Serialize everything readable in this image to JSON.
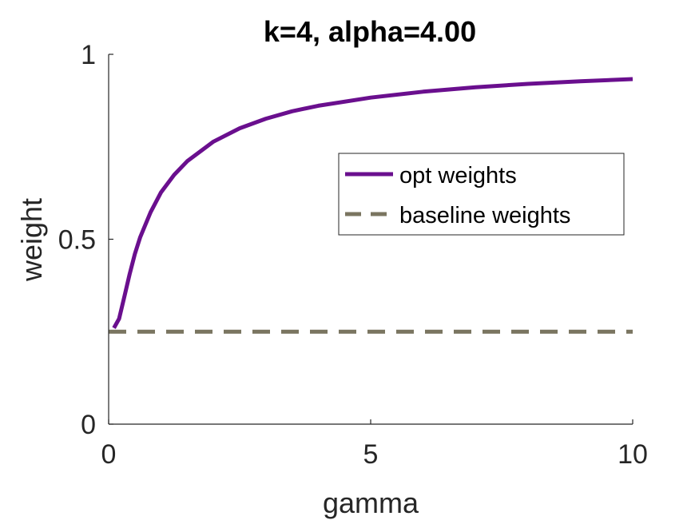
{
  "chart_data": {
    "type": "line",
    "title": "k=4, alpha=4.00",
    "xlabel": "gamma",
    "ylabel": "weight",
    "xlim": [
      0,
      10
    ],
    "ylim": [
      0,
      1
    ],
    "xticks": [
      "0",
      "5",
      "10"
    ],
    "yticks": [
      "0",
      "0.5",
      "1"
    ],
    "grid": false,
    "legend_position": "center-right",
    "series": [
      {
        "name": "opt weights",
        "style": "solid",
        "color": "#6a0f8e",
        "x": [
          0.1,
          0.2,
          0.3,
          0.4,
          0.5,
          0.6,
          0.8,
          1.0,
          1.25,
          1.5,
          2.0,
          2.5,
          3.0,
          3.5,
          4.0,
          5.0,
          6.0,
          7.0,
          8.0,
          9.0,
          10.0
        ],
        "y": [
          0.26,
          0.285,
          0.345,
          0.405,
          0.46,
          0.505,
          0.573,
          0.627,
          0.674,
          0.711,
          0.764,
          0.8,
          0.826,
          0.846,
          0.861,
          0.883,
          0.899,
          0.911,
          0.92,
          0.927,
          0.933
        ]
      },
      {
        "name": "baseline weights",
        "style": "dashed",
        "color": "#7a7560",
        "x": [
          0.0,
          10.0
        ],
        "y": [
          0.25,
          0.25
        ]
      }
    ]
  }
}
